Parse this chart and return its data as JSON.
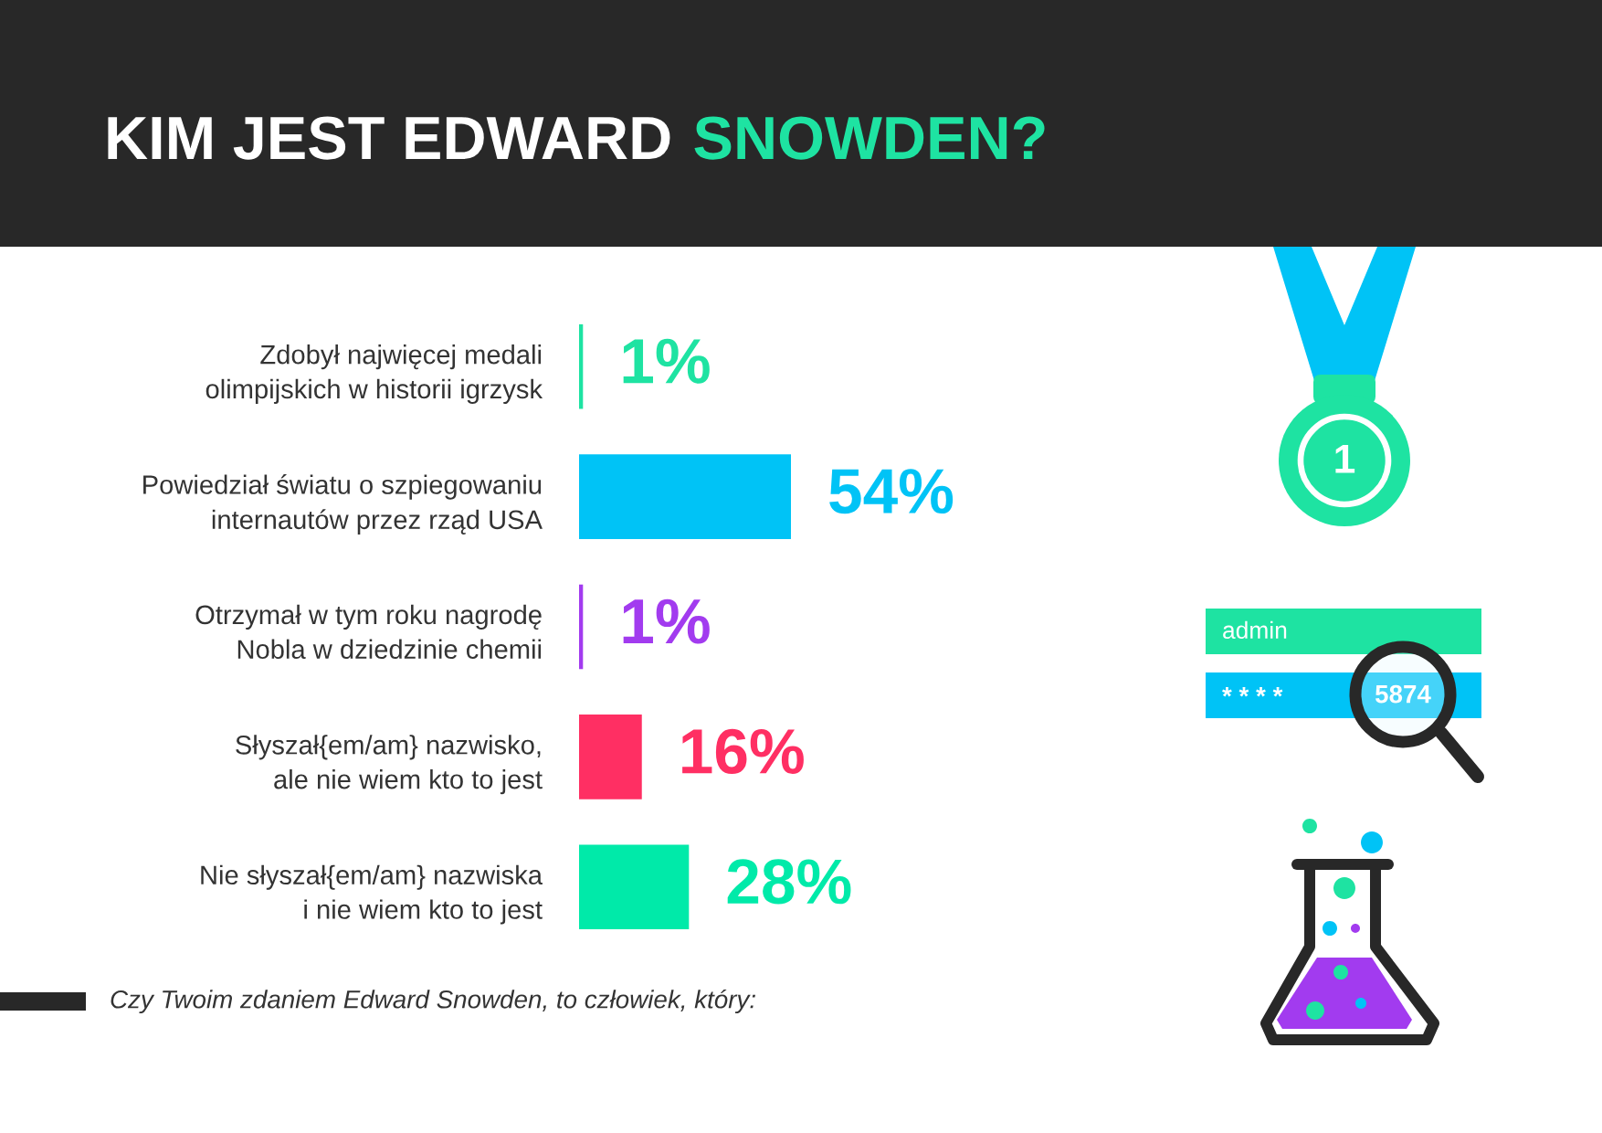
{
  "chart_data": {
    "type": "bar",
    "orientation": "horizontal",
    "title": "KIM JEST EDWARD SNOWDEN?",
    "categories": [
      "Zdobył najwięcej medali\nolimpijskich w historii igrzysk",
      "Powiedział światu o szpiegowaniu\ninternautów przez rząd USA",
      "Otrzymał w tym roku nagrodę\nNobla w dziedzinie chemii",
      "Słyszał{em/am} nazwisko,\nale nie wiem kto to jest",
      "Nie słyszał{em/am} nazwiska\ni nie wiem kto to jest"
    ],
    "values": [
      1,
      54,
      1,
      16,
      28
    ],
    "colors": [
      "#1ee3a2",
      "#00c3f6",
      "#a23bef",
      "#ff2f63",
      "#00eaa9"
    ],
    "value_labels": [
      "1%",
      "54%",
      "1%",
      "16%",
      "28%"
    ],
    "tick_labels": "y",
    "annotations": [
      "Czy Twoim zdaniem Edward Snowden, to człowiek, który:",
      "1",
      "admin",
      "* * * * 5874"
    ]
  }
}
